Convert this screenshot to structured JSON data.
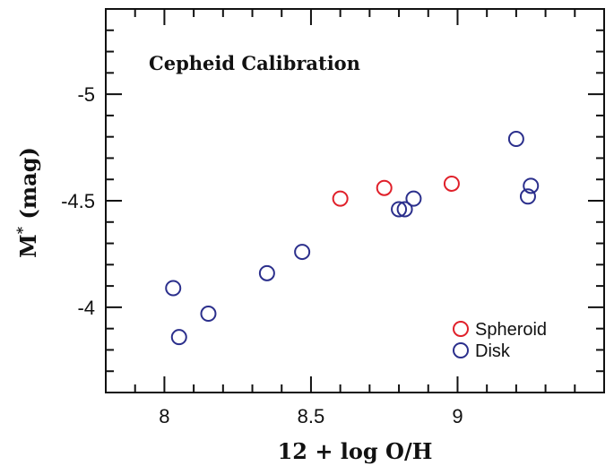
{
  "chart_data": {
    "type": "scatter",
    "title": "Cepheid Calibration",
    "xlabel": "12 + log O/H",
    "ylabel_main": "M",
    "ylabel_sup": "*",
    "ylabel_unit": "(mag)",
    "xlim": [
      7.8,
      9.5
    ],
    "ylim": [
      -3.6,
      -5.4
    ],
    "y_inverted": true,
    "x_ticks": [
      8,
      8.5,
      9
    ],
    "x_tick_labels": [
      "8",
      "8.5",
      "9"
    ],
    "y_ticks": [
      -4,
      -4.5,
      -5
    ],
    "y_tick_labels": [
      "-4",
      "-4.5",
      "-5"
    ],
    "legend_position": "bottom-right",
    "series": [
      {
        "name": "Spheroid",
        "color": "#e0202a",
        "marker": "open-circle",
        "x": [
          8.6,
          8.75,
          8.98
        ],
        "y": [
          -4.51,
          -4.56,
          -4.58
        ]
      },
      {
        "name": "Disk",
        "color": "#2b2f8c",
        "marker": "open-circle",
        "x": [
          8.03,
          8.05,
          8.15,
          8.35,
          8.47,
          8.8,
          8.82,
          8.85,
          9.2,
          9.24,
          9.25
        ],
        "y": [
          -4.09,
          -3.86,
          -3.97,
          -4.16,
          -4.26,
          -4.46,
          -4.46,
          -4.51,
          -4.79,
          -4.52,
          -4.57
        ]
      }
    ]
  }
}
